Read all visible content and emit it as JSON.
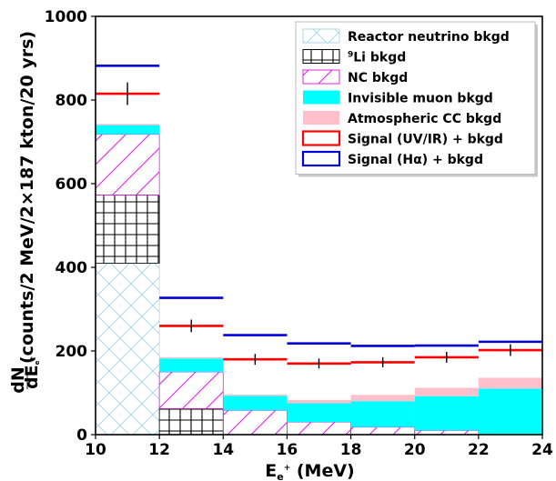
{
  "chart_data": {
    "type": "bar",
    "title": "",
    "xlabel_main": "E",
    "xlabel_sub": "e",
    "xlabel_sup": "+",
    "xlabel_unit": " (MeV)",
    "ylabel_frac_num": "dN",
    "ylabel_frac_den": "dE",
    "ylabel_frac_den_sub": "e",
    "ylabel_frac_den_sup": "+",
    "ylabel_text": " (counts/2 MeV/2×187 kton/20 yrs)",
    "xlim": [
      10,
      24
    ],
    "ylim": [
      0,
      1000
    ],
    "x_ticks": [
      "10",
      "12",
      "14",
      "16",
      "18",
      "20",
      "22",
      "24"
    ],
    "y_ticks": [
      "0",
      "200",
      "400",
      "600",
      "800",
      "1000"
    ],
    "bin_edges": [
      10,
      12,
      14,
      16,
      18,
      20,
      22,
      24
    ],
    "bin_centers": [
      11,
      13,
      15,
      17,
      19,
      21,
      23
    ],
    "stack_order_bottom_to_top": [
      "Reactor neutrino bkgd",
      "9Li bkgd",
      "NC bkgd",
      "Invisible muon bkgd",
      "Atmospheric CC bkgd"
    ],
    "series": [
      {
        "name": "Reactor neutrino bkgd",
        "values": [
          410,
          0,
          0,
          0,
          0,
          0,
          0
        ],
        "color": "#add8e6",
        "style": "crosshatch"
      },
      {
        "name": "9Li bkgd",
        "values": [
          163,
          62,
          0,
          0,
          0,
          0,
          0
        ],
        "color": "#000000",
        "style": "grid"
      },
      {
        "name": "NC bkgd",
        "values": [
          145,
          88,
          58,
          30,
          18,
          10,
          0
        ],
        "color": "#e020e0",
        "style": "diagonal"
      },
      {
        "name": "Invisible muon bkgd",
        "values": [
          22,
          32,
          35,
          45,
          62,
          82,
          110
        ],
        "color": "#00ffff",
        "style": "solid"
      },
      {
        "name": "Atmospheric CC bkgd",
        "values": [
          3,
          3,
          3,
          8,
          15,
          20,
          26
        ],
        "color": "#ffc0cb",
        "style": "solid"
      }
    ],
    "signal_series": [
      {
        "name": "Signal (UV/IR) + bkgd",
        "values": [
          815,
          260,
          180,
          170,
          173,
          185,
          202
        ],
        "errors": [
          27,
          15,
          13,
          12,
          12,
          13,
          14
        ],
        "color": "#ff0000"
      },
      {
        "name": "Signal (Hα) + bkgd",
        "values": [
          882,
          327,
          238,
          218,
          212,
          213,
          222
        ],
        "color": "#0000dd"
      }
    ],
    "legend": {
      "position": "top-right",
      "entries": [
        {
          "label_main": "Reactor neutrino bkgd",
          "label_pre": ""
        },
        {
          "label_main": "Li bkgd",
          "label_pre": "9"
        },
        {
          "label_main": "NC bkgd",
          "label_pre": ""
        },
        {
          "label_main": "Invisible muon bkgd",
          "label_pre": ""
        },
        {
          "label_main": "Atmospheric CC bkgd",
          "label_pre": ""
        },
        {
          "label_main": "Signal (UV/IR) + bkgd",
          "label_pre": ""
        },
        {
          "label_main": "Signal (Hα) + bkgd",
          "label_pre": ""
        }
      ]
    },
    "grid": false
  }
}
